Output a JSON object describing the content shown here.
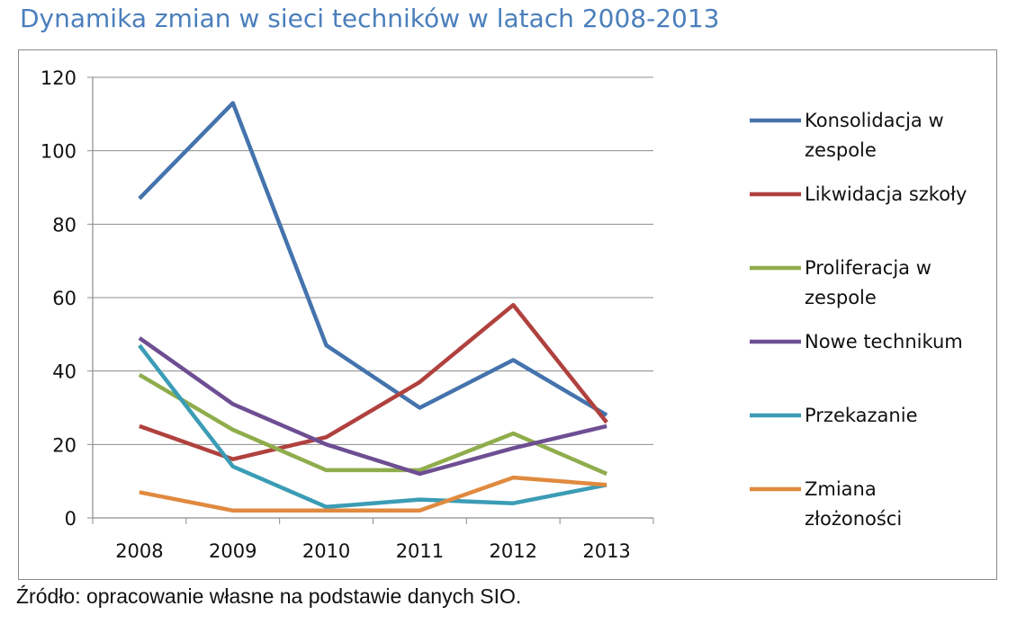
{
  "page": {
    "title": "Dynamika zmian w sieci techników w latach 2008-2013",
    "source": "Źródło: opracowanie własne na podstawie danych SIO."
  },
  "chart_data": {
    "type": "line",
    "title": "",
    "xlabel": "",
    "ylabel": "",
    "categories": [
      "2008",
      "2009",
      "2010",
      "2011",
      "2012",
      "2013"
    ],
    "ylim": [
      0,
      120
    ],
    "yticks": [
      0,
      20,
      40,
      60,
      80,
      100,
      120
    ],
    "grid": true,
    "legend_position": "right",
    "series": [
      {
        "name": "Konsolidacja w zespole",
        "legend_lines": [
          "Konsolidacja w",
          "zespole"
        ],
        "color": "#4473ad",
        "values": [
          87,
          113,
          47,
          30,
          43,
          28
        ]
      },
      {
        "name": "Likwidacja szkoły",
        "legend_lines": [
          "Likwidacja szkoły"
        ],
        "color": "#b0413e",
        "values": [
          25,
          16,
          22,
          37,
          58,
          26
        ]
      },
      {
        "name": "Proliferacja w zespole",
        "legend_lines": [
          "Proliferacja w",
          "zespole"
        ],
        "color": "#8fad4c",
        "values": [
          39,
          24,
          13,
          13,
          23,
          12
        ]
      },
      {
        "name": "Nowe technikum",
        "legend_lines": [
          "Nowe technikum"
        ],
        "color": "#6e4e93",
        "values": [
          49,
          31,
          20,
          12,
          19,
          25
        ]
      },
      {
        "name": "Przekazanie",
        "legend_lines": [
          "Przekazanie"
        ],
        "color": "#3b9cb5",
        "values": [
          47,
          14,
          3,
          5,
          4,
          9
        ]
      },
      {
        "name": "Zmiana złożoności",
        "legend_lines": [
          "Zmiana",
          "złożoności"
        ],
        "color": "#e08a3f",
        "values": [
          7,
          2,
          2,
          2,
          11,
          9
        ]
      }
    ]
  }
}
